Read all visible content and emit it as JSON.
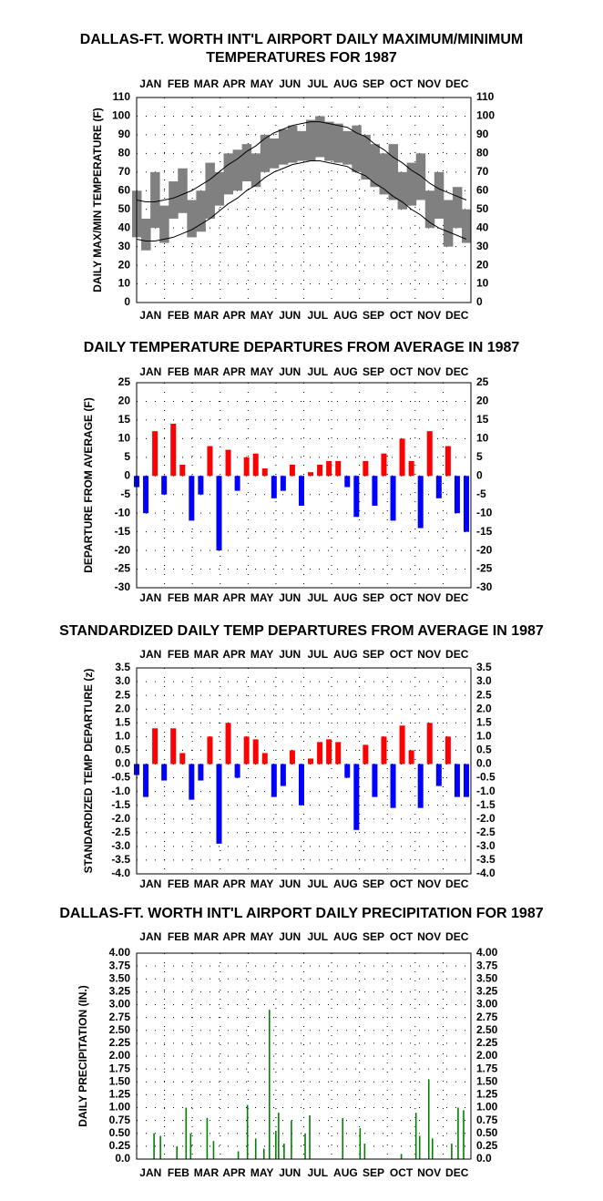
{
  "chart_data": [
    {
      "type": "line",
      "title": "DALLAS-FT. WORTH INT'L AIRPORT DAILY MAXIMUM/MINIMUM TEMPERATURES FOR 1987",
      "ylabel": "DAILY MAX/MIN TEMPERATURE (F)",
      "months": [
        "JAN",
        "FEB",
        "MAR",
        "APR",
        "MAY",
        "JUN",
        "JUL",
        "AUG",
        "SEP",
        "OCT",
        "NOV",
        "DEC"
      ],
      "x": [
        1,
        11,
        21,
        31,
        41,
        51,
        61,
        71,
        81,
        91,
        101,
        111,
        121,
        131,
        141,
        151,
        161,
        171,
        181,
        191,
        201,
        211,
        221,
        231,
        241,
        251,
        261,
        271,
        281,
        291,
        301,
        311,
        321,
        331,
        341,
        351,
        361
      ],
      "fill_between": [
        0,
        1
      ],
      "series": [
        {
          "color": "#808080",
          "values": [
            60,
            45,
            70,
            52,
            65,
            72,
            55,
            60,
            75,
            70,
            80,
            82,
            85,
            80,
            90,
            88,
            93,
            95,
            92,
            98,
            100,
            97,
            96,
            92,
            95,
            90,
            85,
            80,
            85,
            70,
            75,
            80,
            60,
            70,
            55,
            62,
            50
          ]
        },
        {
          "color": "#808080",
          "values": [
            35,
            28,
            40,
            32,
            45,
            48,
            35,
            38,
            45,
            52,
            58,
            60,
            65,
            62,
            70,
            72,
            74,
            75,
            76,
            76,
            78,
            76,
            75,
            74,
            70,
            66,
            62,
            58,
            55,
            50,
            52,
            55,
            40,
            45,
            30,
            40,
            32
          ]
        },
        {
          "color": "#000000",
          "values": [
            55,
            54,
            54,
            55,
            56,
            58,
            60,
            63,
            66,
            70,
            74,
            77,
            81,
            84,
            88,
            91,
            93,
            95,
            96,
            97,
            97,
            96,
            95,
            94,
            91,
            89,
            85,
            82,
            78,
            75,
            71,
            68,
            64,
            61,
            59,
            57,
            55
          ]
        },
        {
          "color": "#000000",
          "values": [
            34,
            33,
            33,
            34,
            35,
            37,
            39,
            42,
            45,
            49,
            53,
            56,
            60,
            63,
            67,
            70,
            72,
            74,
            75,
            76,
            76,
            75,
            74,
            73,
            70,
            68,
            64,
            61,
            57,
            54,
            50,
            47,
            43,
            40,
            38,
            36,
            34
          ]
        }
      ],
      "xlim": [
        1,
        366
      ],
      "ylim": [
        0,
        110
      ],
      "yticks": [
        0,
        10,
        20,
        30,
        40,
        50,
        60,
        70,
        80,
        90,
        100,
        110
      ],
      "grid": true
    },
    {
      "type": "bar",
      "title": "DAILY TEMPERATURE DEPARTURES FROM AVERAGE IN 1987",
      "ylabel": "DEPARTURE FROM AVERAGE (F)",
      "months": [
        "JAN",
        "FEB",
        "MAR",
        "APR",
        "MAY",
        "JUN",
        "JUL",
        "AUG",
        "SEP",
        "OCT",
        "NOV",
        "DEC"
      ],
      "x": [
        1,
        11,
        21,
        31,
        41,
        51,
        61,
        71,
        81,
        91,
        101,
        111,
        121,
        131,
        141,
        151,
        161,
        171,
        181,
        191,
        201,
        211,
        221,
        231,
        241,
        251,
        261,
        271,
        281,
        291,
        301,
        311,
        321,
        331,
        341,
        351,
        361
      ],
      "values": [
        -3,
        -10,
        12,
        -5,
        14,
        3,
        -12,
        -5,
        8,
        -20,
        7,
        -4,
        5,
        6,
        2,
        -6,
        -4,
        3,
        -8,
        1,
        3,
        4,
        4,
        -3,
        -11,
        4,
        -8,
        6,
        -12,
        10,
        4,
        -14,
        12,
        -6,
        8,
        -10,
        -15
      ],
      "pos_color": "#ff0000",
      "neg_color": "#0000ff",
      "xlim": [
        1,
        366
      ],
      "ylim": [
        -30,
        25
      ],
      "yticks": [
        -30,
        -25,
        -20,
        -15,
        -10,
        -5,
        0,
        5,
        10,
        15,
        20,
        25
      ],
      "grid": true
    },
    {
      "type": "bar",
      "title": "STANDARDIZED DAILY TEMP DEPARTURES FROM AVERAGE IN 1987",
      "ylabel": "STANDARDIZED TEMP DEPARTURE (z)",
      "months": [
        "JAN",
        "FEB",
        "MAR",
        "APR",
        "MAY",
        "JUN",
        "JUL",
        "AUG",
        "SEP",
        "OCT",
        "NOV",
        "DEC"
      ],
      "x": [
        1,
        11,
        21,
        31,
        41,
        51,
        61,
        71,
        81,
        91,
        101,
        111,
        121,
        131,
        141,
        151,
        161,
        171,
        181,
        191,
        201,
        211,
        221,
        231,
        241,
        251,
        261,
        271,
        281,
        291,
        301,
        311,
        321,
        331,
        341,
        351,
        361
      ],
      "values": [
        -0.4,
        -1.2,
        1.3,
        -0.6,
        1.3,
        0.4,
        -1.3,
        -0.6,
        1.0,
        -2.9,
        1.5,
        -0.5,
        1.0,
        0.9,
        0.4,
        -1.2,
        -0.8,
        0.5,
        -1.5,
        0.2,
        0.8,
        0.9,
        0.8,
        -0.5,
        -2.4,
        0.7,
        -1.2,
        1.0,
        -1.6,
        1.4,
        0.5,
        -1.6,
        1.5,
        -0.8,
        1.0,
        -1.2,
        -1.2
      ],
      "pos_color": "#ff0000",
      "neg_color": "#0000ff",
      "xlim": [
        1,
        366
      ],
      "ylim": [
        -4,
        3.5
      ],
      "yticks": [
        {
          "value": -4,
          "label": "-4.0"
        },
        -3.5,
        {
          "value": -3,
          "label": "-3.0"
        },
        -2.5,
        {
          "value": -2,
          "label": "-2.0"
        },
        -1.5,
        {
          "value": -1,
          "label": "-1.0"
        },
        -0.5,
        {
          "value": 0,
          "label": "0.0"
        },
        0.5,
        {
          "value": 1,
          "label": "1.0"
        },
        1.5,
        {
          "value": 2,
          "label": "2.0"
        },
        2.5,
        {
          "value": 3,
          "label": "3.0"
        },
        3.5
      ],
      "grid": true
    },
    {
      "type": "bar",
      "title": "DALLAS-FT. WORTH INT'L AIRPORT DAILY PRECIPITATION FOR 1987",
      "ylabel": "DAILY PRECIPITATION (IN.)",
      "months": [
        "JAN",
        "FEB",
        "MAR",
        "APR",
        "MAY",
        "JUN",
        "JUL",
        "AUG",
        "SEP",
        "OCT",
        "NOV",
        "DEC"
      ],
      "x": [
        20,
        27,
        45,
        55,
        60,
        78,
        85,
        112,
        122,
        131,
        140,
        146,
        153,
        156,
        162,
        170,
        185,
        190,
        226,
        245,
        250,
        290,
        306,
        310,
        320,
        324,
        345,
        352,
        358
      ],
      "values": [
        0.5,
        0.45,
        0.25,
        1.0,
        0.5,
        0.8,
        0.35,
        0.15,
        1.05,
        0.4,
        0.2,
        2.9,
        0.55,
        0.9,
        0.3,
        0.75,
        0.5,
        0.85,
        0.8,
        0.6,
        0.3,
        0.1,
        0.9,
        0.45,
        1.55,
        0.4,
        0.3,
        1.0,
        0.95
      ],
      "color": "#008000",
      "xlim": [
        1,
        366
      ],
      "ylim": [
        0,
        4
      ],
      "yticks": [
        {
          "value": 0,
          "label": "0.0"
        },
        0.25,
        {
          "value": 0.5,
          "label": "0.50"
        },
        0.75,
        {
          "value": 1,
          "label": "1.00"
        },
        1.25,
        {
          "value": 1.5,
          "label": "1.50"
        },
        1.75,
        {
          "value": 2,
          "label": "2.00"
        },
        2.25,
        {
          "value": 2.5,
          "label": "2.50"
        },
        2.75,
        {
          "value": 3,
          "label": "3.00"
        },
        3.25,
        {
          "value": 3.5,
          "label": "3.50"
        },
        3.75,
        {
          "value": 4,
          "label": "4.00"
        }
      ],
      "grid": true
    }
  ]
}
